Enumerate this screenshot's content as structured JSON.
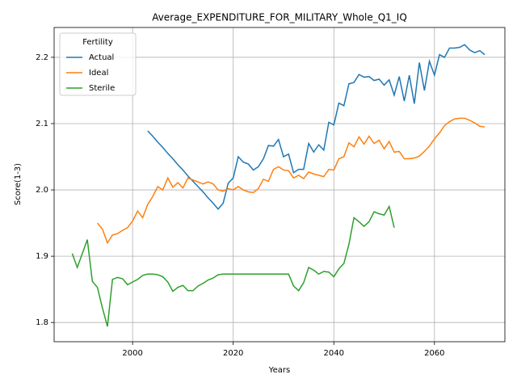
{
  "chart_data": {
    "type": "line",
    "title": "Average_EXPENDITURE_FOR_MILITARY_Whole_Q1_IQ",
    "x_label": "Years",
    "y_label": "Score(1-3)",
    "x": [
      1988,
      1989,
      1990,
      1991,
      1992,
      1993,
      1994,
      1995,
      1996,
      1997,
      1998,
      1999,
      2000,
      2001,
      2002,
      2003,
      2004,
      2005,
      2006,
      2007,
      2008,
      2009,
      2010,
      2011,
      2012,
      2013,
      2014,
      2015,
      2016,
      2017,
      2018,
      2019,
      2020,
      2021,
      2022,
      2023,
      2024,
      2025,
      2026,
      2027,
      2028,
      2029,
      2030,
      2031,
      2032,
      2033,
      2034,
      2035,
      2036,
      2037,
      2038,
      2039,
      2040,
      2041,
      2042,
      2043,
      2044,
      2045,
      2046,
      2047,
      2048,
      2049,
      2050,
      2051,
      2052,
      2053,
      2054,
      2055,
      2056,
      2057,
      2058,
      2059,
      2060,
      2061,
      2062,
      2063,
      2064,
      2065,
      2066,
      2067,
      2068,
      2069,
      2070
    ],
    "series": [
      {
        "name": "Actual",
        "color": "#1f77b4",
        "values": [
          null,
          null,
          null,
          null,
          null,
          null,
          null,
          null,
          null,
          null,
          null,
          null,
          null,
          null,
          null,
          2.089,
          2.081,
          2.072,
          2.064,
          2.055,
          2.047,
          2.038,
          2.03,
          2.021,
          2.013,
          2.005,
          1.997,
          1.988,
          1.98,
          1.971,
          1.98,
          2.01,
          2.018,
          2.05,
          2.042,
          2.039,
          2.03,
          2.035,
          2.047,
          2.067,
          2.066,
          2.076,
          2.05,
          2.054,
          2.026,
          2.031,
          2.031,
          2.07,
          2.057,
          2.068,
          2.06,
          2.102,
          2.098,
          2.131,
          2.127,
          2.16,
          2.162,
          2.174,
          2.17,
          2.171,
          2.165,
          2.167,
          2.158,
          2.166,
          2.143,
          2.171,
          2.134,
          2.173,
          2.13,
          2.192,
          2.15,
          2.194,
          2.173,
          2.204,
          2.2,
          2.214,
          2.214,
          2.215,
          2.219,
          2.211,
          2.207,
          2.21,
          2.204
        ]
      },
      {
        "name": "Ideal",
        "color": "#ff7f0e",
        "values": [
          null,
          null,
          null,
          null,
          null,
          1.95,
          1.941,
          1.92,
          1.932,
          1.934,
          1.939,
          1.943,
          1.953,
          1.968,
          1.958,
          1.978,
          1.99,
          2.005,
          2.0,
          2.018,
          2.004,
          2.011,
          2.003,
          2.018,
          2.015,
          2.012,
          2.009,
          2.012,
          2.009,
          2.0,
          1.998,
          2.002,
          2.0,
          2.005,
          2.0,
          1.997,
          1.996,
          2.002,
          2.016,
          2.013,
          2.031,
          2.035,
          2.03,
          2.029,
          2.018,
          2.022,
          2.017,
          2.027,
          2.024,
          2.022,
          2.02,
          2.031,
          2.03,
          2.047,
          2.05,
          2.071,
          2.065,
          2.08,
          2.069,
          2.081,
          2.07,
          2.075,
          2.062,
          2.073,
          2.057,
          2.058,
          2.047,
          2.047,
          2.048,
          2.051,
          2.058,
          2.066,
          2.077,
          2.086,
          2.097,
          2.103,
          2.107,
          2.108,
          2.108,
          2.105,
          2.101,
          2.096,
          2.095
        ]
      },
      {
        "name": "Sterile",
        "color": "#2ca02c",
        "values": [
          1.904,
          1.883,
          1.904,
          1.925,
          1.862,
          1.853,
          1.822,
          1.794,
          1.865,
          1.868,
          1.866,
          1.857,
          1.861,
          1.865,
          1.871,
          1.873,
          1.873,
          1.872,
          1.869,
          1.861,
          1.847,
          1.853,
          1.856,
          1.848,
          1.848,
          1.855,
          1.859,
          1.864,
          1.867,
          1.872,
          1.873,
          1.873,
          1.873,
          1.873,
          1.873,
          1.873,
          1.873,
          1.873,
          1.873,
          1.873,
          1.873,
          1.873,
          1.873,
          1.873,
          1.855,
          1.848,
          1.86,
          1.883,
          1.879,
          1.873,
          1.877,
          1.876,
          1.869,
          1.881,
          1.889,
          1.918,
          1.958,
          1.952,
          1.945,
          1.952,
          1.967,
          1.964,
          1.962,
          1.975,
          1.943,
          null,
          null,
          null,
          null,
          null,
          null,
          null,
          null,
          null,
          null,
          null,
          null,
          null,
          null,
          null,
          null,
          null,
          null
        ]
      }
    ],
    "xlim": [
      1984.4,
      2074
    ],
    "ylim": [
      1.771,
      2.245
    ],
    "xticks": [
      2000,
      2020,
      2040,
      2060
    ],
    "yticks": [
      1.8,
      1.9,
      {
        "value": 2,
        "label": "2.0"
      },
      2.1,
      2.2
    ],
    "grid": true,
    "legend_title": "Fertility",
    "legend_loc": "upper left"
  }
}
